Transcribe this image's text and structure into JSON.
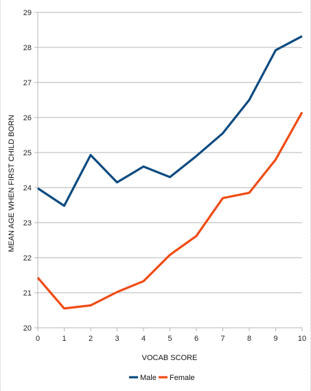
{
  "chart_data": {
    "type": "line",
    "title": "",
    "xlabel": "VOCAB SCORE",
    "ylabel": "MEAN AGE WHEN FIRST CHILD BORN",
    "x": [
      0,
      1,
      2,
      3,
      4,
      5,
      6,
      7,
      8,
      9,
      10
    ],
    "xlim": [
      0,
      10
    ],
    "ylim": [
      20,
      29
    ],
    "yticks": [
      20,
      21,
      22,
      23,
      24,
      25,
      26,
      27,
      28,
      29
    ],
    "grid": "horizontal",
    "legend_position": "bottom",
    "series": [
      {
        "name": "Male",
        "color": "#0b4a80",
        "values": [
          23.98,
          23.48,
          24.93,
          24.15,
          24.6,
          24.3,
          24.9,
          25.55,
          26.5,
          27.92,
          28.32
        ]
      },
      {
        "name": "Female",
        "color": "#f04a13",
        "values": [
          21.43,
          20.55,
          20.64,
          21.02,
          21.33,
          22.08,
          22.62,
          23.7,
          23.85,
          24.8,
          26.15
        ]
      }
    ]
  }
}
